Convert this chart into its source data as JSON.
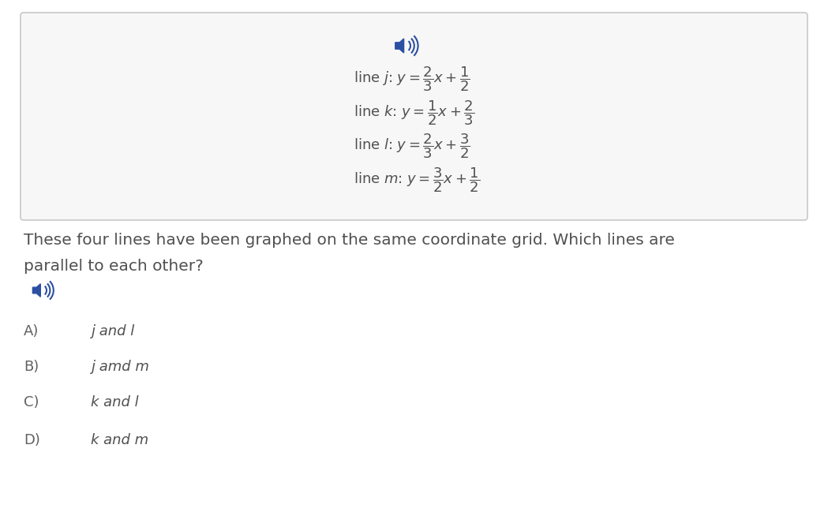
{
  "background_color": "#ffffff",
  "box_facecolor": "#f7f7f7",
  "box_edgecolor": "#c8c8c8",
  "speaker_color": "#2b4fa3",
  "text_color": "#505050",
  "label_color": "#606060",
  "question_text_line1": "These four lines have been graphed on the same coordinate grid. Which lines are",
  "question_text_line2": "parallel to each other?",
  "eq_j": "line $\\mathit{j}$: $y = \\dfrac{2}{3}x + \\dfrac{1}{2}$",
  "eq_k": "line $\\mathit{k}$: $y = \\dfrac{1}{2}x + \\dfrac{2}{3}$",
  "eq_l": "line $\\mathit{l}$: $y = \\dfrac{2}{3}x + \\dfrac{3}{2}$",
  "eq_m": "line $\\mathit{m}$: $y = \\dfrac{3}{2}x + \\dfrac{1}{2}$",
  "options": [
    {
      "label": "A)",
      "text_regular": "j",
      "text_connector": " and ",
      "text_italic": "l"
    },
    {
      "label": "B)",
      "text_regular": "j",
      "text_connector": " amd ",
      "text_italic": "m"
    },
    {
      "label": "C)",
      "text_regular": "k",
      "text_connector": " and ",
      "text_italic": "l"
    },
    {
      "label": "D)",
      "text_regular": "k",
      "text_connector": " and ",
      "text_italic": "m"
    }
  ],
  "figsize": [
    10.49,
    6.68
  ],
  "dpi": 100
}
